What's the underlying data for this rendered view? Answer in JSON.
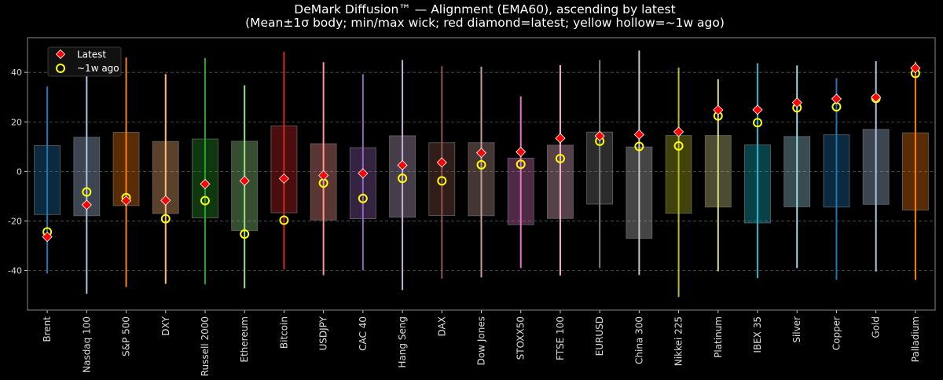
{
  "chart_data": {
    "type": "box",
    "title": "DeMark Diffusion™ — Alignment (EMA60), ascending by latest",
    "subtitle": "(Mean±1σ body; min/max wick; red diamond=latest; yellow hollow=~1w ago)",
    "xlabel": "",
    "ylabel": "",
    "ylim": [
      -56,
      54
    ],
    "yticks": [
      -40,
      -20,
      0,
      20,
      40
    ],
    "grid": "horizontal dashed",
    "legend_position": "top-left",
    "legend": [
      {
        "label": "Latest",
        "marker": "red-diamond",
        "color": "#ff0000"
      },
      {
        "label": "~1w ago",
        "marker": "yellow-hollow-circle",
        "color": "#ffff00"
      }
    ],
    "categories": [
      "Brent",
      "Nasdaq 100",
      "S&P 500",
      "DXY",
      "Russell 2000",
      "Ethereum",
      "Bitcoin",
      "USDJPY",
      "CAC 40",
      "Hang Seng",
      "DAX",
      "Dow Jones",
      "STOXX50",
      "FTSE 100",
      "EURUSD",
      "China 300",
      "Nikkei 225",
      "Platinum",
      "IBEX 35",
      "Silver",
      "Copper",
      "Gold",
      "Palladium"
    ],
    "colors": [
      "#1f77b4",
      "#aec7e8",
      "#ff7f0e",
      "#ffbb78",
      "#2ca02c",
      "#98df8a",
      "#d62728",
      "#ff9896",
      "#9467bd",
      "#c5b0d5",
      "#8c564b",
      "#c49c94",
      "#e377c2",
      "#f7b6d2",
      "#7f7f7f",
      "#c7c7c7",
      "#bcbd22",
      "#dbdb8d",
      "#17becf",
      "#9edae5",
      "#1f77b4",
      "#aec7e8",
      "#ff7f0e"
    ],
    "min": [
      -41.2,
      -49.4,
      -46.7,
      -45.4,
      -45.6,
      -47.2,
      -39.6,
      -41.9,
      -39.9,
      -47.9,
      -43.3,
      -42.8,
      -39.0,
      -42.0,
      -39.0,
      -41.8,
      -50.7,
      -40.3,
      -43.1,
      -39.0,
      -43.8,
      -40.4,
      -43.8
    ],
    "body_low": [
      -17.4,
      -17.9,
      -13.8,
      -17.0,
      -18.8,
      -23.9,
      -16.7,
      -19.6,
      -19.1,
      -18.5,
      -17.8,
      -17.9,
      -21.5,
      -19.0,
      -13.2,
      -27.0,
      -16.9,
      -14.4,
      -20.8,
      -14.3,
      -14.4,
      -13.3,
      -15.6
    ],
    "body_high": [
      10.4,
      13.8,
      15.8,
      12.1,
      13.1,
      12.2,
      18.4,
      11.2,
      9.6,
      14.4,
      11.6,
      11.6,
      5.4,
      10.6,
      15.9,
      9.9,
      14.5,
      14.5,
      10.7,
      14.1,
      14.8,
      17.0,
      15.6
    ],
    "max": [
      34.3,
      42.0,
      46.0,
      39.3,
      45.8,
      34.8,
      48.3,
      44.1,
      39.3,
      45.0,
      42.5,
      42.3,
      30.3,
      42.9,
      45.0,
      48.8,
      41.9,
      37.2,
      43.7,
      42.8,
      37.7,
      44.5,
      44.3
    ],
    "latest": [
      -26.4,
      -13.5,
      -11.8,
      -11.7,
      -5.1,
      -3.8,
      -2.9,
      -1.6,
      -0.8,
      2.5,
      3.6,
      7.5,
      7.9,
      13.4,
      14.3,
      14.9,
      16.0,
      24.8,
      24.9,
      27.8,
      29.3,
      29.9,
      41.7
    ],
    "week_ago": [
      -24.4,
      -8.3,
      -10.6,
      -19.1,
      -11.8,
      -25.3,
      -19.7,
      -4.7,
      -10.9,
      -2.8,
      -3.8,
      2.7,
      2.9,
      5.2,
      12.2,
      10.1,
      10.3,
      22.4,
      19.7,
      25.7,
      26.1,
      29.5,
      39.6
    ]
  }
}
